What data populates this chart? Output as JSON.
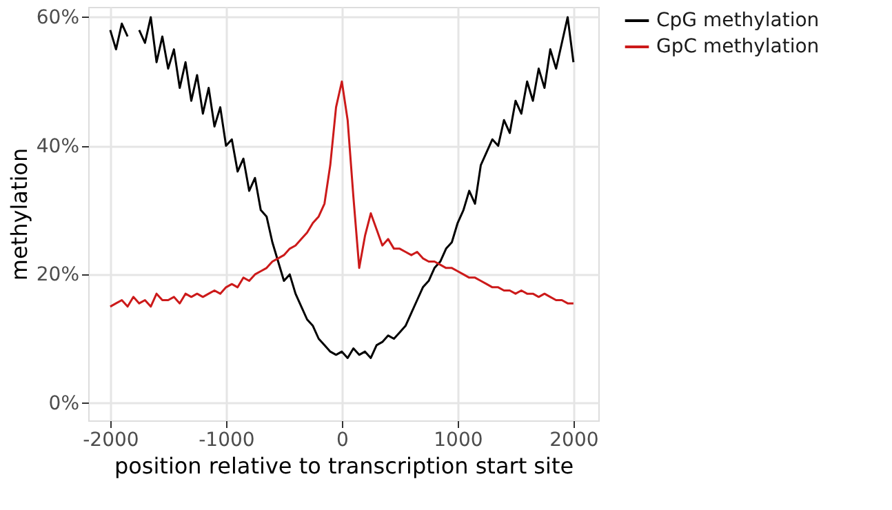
{
  "chart_data": {
    "type": "line",
    "xlabel": "position relative to transcription start site",
    "ylabel": "methylation",
    "x": [
      -2000,
      -1950,
      -1900,
      -1850,
      -1800,
      -1750,
      -1700,
      -1650,
      -1600,
      -1550,
      -1500,
      -1450,
      -1400,
      -1350,
      -1300,
      -1250,
      -1200,
      -1150,
      -1100,
      -1050,
      -1000,
      -950,
      -900,
      -850,
      -800,
      -750,
      -700,
      -650,
      -600,
      -550,
      -500,
      -450,
      -400,
      -350,
      -300,
      -250,
      -200,
      -150,
      -100,
      -50,
      0,
      50,
      100,
      150,
      200,
      250,
      300,
      350,
      400,
      450,
      500,
      550,
      600,
      650,
      700,
      750,
      800,
      850,
      900,
      950,
      1000,
      1050,
      1100,
      1150,
      1200,
      1250,
      1300,
      1350,
      1400,
      1450,
      1500,
      1550,
      1600,
      1650,
      1700,
      1750,
      1800,
      1850,
      1900,
      1950,
      2000
    ],
    "series": [
      {
        "name": "CpG methylation",
        "color": "#000000",
        "values": [
          58,
          55,
          59,
          57,
          null,
          58,
          56,
          60,
          53,
          57,
          52,
          55,
          49,
          53,
          47,
          51,
          45,
          49,
          43,
          46,
          40,
          41,
          36,
          38,
          33,
          35,
          30,
          29,
          25,
          22,
          19,
          20,
          17,
          15,
          13,
          12,
          10,
          9,
          8,
          7.5,
          8,
          7,
          8.5,
          7.5,
          8,
          7,
          9,
          9.5,
          10.5,
          10,
          11,
          12,
          14,
          16,
          18,
          19,
          21,
          22,
          24,
          25,
          28,
          30,
          33,
          31,
          37,
          39,
          41,
          40,
          44,
          42,
          47,
          45,
          50,
          47,
          52,
          49,
          55,
          52,
          56,
          60,
          53
        ]
      },
      {
        "name": "GpC methylation",
        "color": "#cc1a1a",
        "values": [
          15,
          15.5,
          16,
          15,
          16.5,
          15.5,
          16,
          15,
          17,
          16,
          16,
          16.5,
          15.5,
          17,
          16.5,
          17,
          16.5,
          17,
          17.5,
          17,
          18,
          18.5,
          18,
          19.5,
          19,
          20,
          20.5,
          21,
          22,
          22.5,
          23,
          24,
          24.5,
          25.5,
          26.5,
          28,
          29,
          31,
          37,
          46,
          50,
          44,
          32,
          21,
          26,
          29.5,
          27,
          24.5,
          25.5,
          24,
          24,
          23.5,
          23,
          23.5,
          22.5,
          22,
          22,
          21.5,
          21,
          21,
          20.5,
          20,
          19.5,
          19.5,
          19,
          18.5,
          18,
          18,
          17.5,
          17.5,
          17,
          17.5,
          17,
          17,
          16.5,
          17,
          16.5,
          16,
          16,
          15.5,
          15.5
        ]
      }
    ],
    "xlim": [
      -2190,
      2215
    ],
    "xticks": [
      -2000,
      -1000,
      0,
      1000,
      2000
    ],
    "ylim": [
      -2.7,
      61.6
    ],
    "yticks": [
      {
        "value": 0,
        "label": "0%"
      },
      {
        "value": 20,
        "label": "20%"
      },
      {
        "value": 40,
        "label": "40%"
      },
      {
        "value": 60,
        "label": "60%"
      }
    ],
    "grid": true,
    "legend": "right",
    "line_style": "solid",
    "marker": "none"
  }
}
